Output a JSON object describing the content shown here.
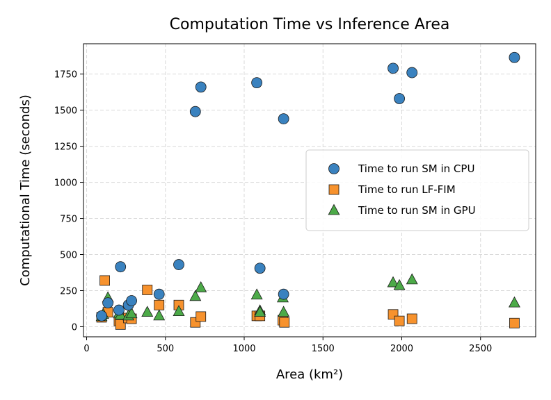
{
  "chart_data": {
    "type": "scatter",
    "title": "Computation Time vs Inference Area",
    "xlabel": "Area (km²)",
    "ylabel": "Computational Time (seconds)",
    "xlim": [
      -20,
      2850
    ],
    "ylim": [
      -70,
      1960
    ],
    "xticks": [
      0,
      500,
      1000,
      1500,
      2000,
      2500
    ],
    "yticks": [
      0,
      250,
      500,
      750,
      1000,
      1250,
      1500,
      1750
    ],
    "grid": true,
    "legend_position": "center-right",
    "series": [
      {
        "name": "Time to run SM in CPU",
        "marker": "circle",
        "color": "#3a82bf",
        "points": [
          [
            95,
            75
          ],
          [
            135,
            165
          ],
          [
            205,
            115
          ],
          [
            215,
            415
          ],
          [
            265,
            150
          ],
          [
            285,
            180
          ],
          [
            460,
            225
          ],
          [
            585,
            430
          ],
          [
            690,
            1490
          ],
          [
            725,
            1660
          ],
          [
            1080,
            1690
          ],
          [
            1100,
            405
          ],
          [
            1250,
            1440
          ],
          [
            1250,
            225
          ],
          [
            1945,
            1790
          ],
          [
            1985,
            1580
          ],
          [
            2065,
            1760
          ],
          [
            2715,
            1865
          ]
        ]
      },
      {
        "name": "Time to run LF-FIM",
        "marker": "square",
        "color": "#f7922d",
        "points": [
          [
            95,
            65
          ],
          [
            115,
            320
          ],
          [
            135,
            100
          ],
          [
            205,
            40
          ],
          [
            215,
            15
          ],
          [
            265,
            60
          ],
          [
            285,
            55
          ],
          [
            385,
            255
          ],
          [
            460,
            150
          ],
          [
            585,
            150
          ],
          [
            690,
            30
          ],
          [
            725,
            70
          ],
          [
            1080,
            75
          ],
          [
            1100,
            75
          ],
          [
            1245,
            45
          ],
          [
            1255,
            30
          ],
          [
            1945,
            85
          ],
          [
            1985,
            40
          ],
          [
            2065,
            55
          ],
          [
            2715,
            25
          ]
        ]
      },
      {
        "name": "Time to run SM in GPU",
        "marker": "triangle",
        "color": "#4caa48",
        "points": [
          [
            95,
            70
          ],
          [
            105,
            85
          ],
          [
            135,
            200
          ],
          [
            205,
            90
          ],
          [
            215,
            80
          ],
          [
            265,
            75
          ],
          [
            285,
            90
          ],
          [
            385,
            100
          ],
          [
            460,
            75
          ],
          [
            585,
            105
          ],
          [
            690,
            210
          ],
          [
            725,
            270
          ],
          [
            1080,
            220
          ],
          [
            1100,
            110
          ],
          [
            1100,
            100
          ],
          [
            1245,
            200
          ],
          [
            1250,
            100
          ],
          [
            1945,
            305
          ],
          [
            1985,
            285
          ],
          [
            2065,
            325
          ],
          [
            2715,
            165
          ]
        ]
      }
    ]
  }
}
